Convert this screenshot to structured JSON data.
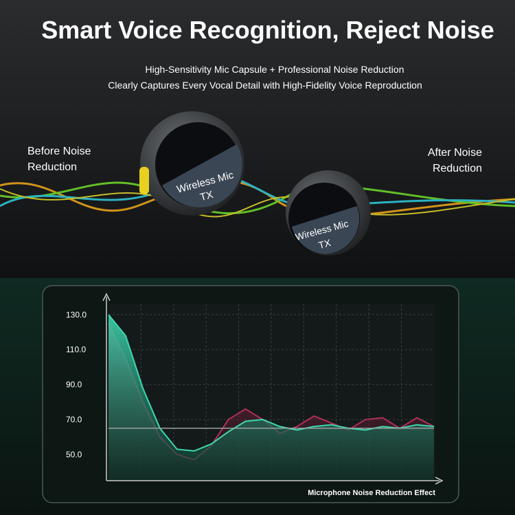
{
  "header": {
    "title": "Smart Voice Recognition, Reject Noise",
    "subtitle_lines": [
      "High-Sensitivity Mic Capsule + Professional Noise Reduction",
      "Clearly Captures Every Vocal Detail with High-Fidelity Voice Reproduction"
    ]
  },
  "labels": {
    "before": [
      "Before Noise",
      "Reduction"
    ],
    "after": [
      "After Noise",
      "Reduction"
    ]
  },
  "device": {
    "label": "Wireless Mic",
    "model": "TX"
  },
  "chart_data": {
    "type": "area",
    "x_label": "Microphone Noise Reduction Effect",
    "series": [
      {
        "color": "#b0305a",
        "values": [
          125,
          105,
          80,
          60,
          50,
          47,
          55,
          70,
          76,
          70,
          62,
          66,
          72,
          68,
          64,
          70,
          71,
          65,
          71,
          66
        ]
      },
      {
        "color": "#3fd6b0",
        "values": [
          130,
          118,
          88,
          65,
          53,
          52,
          56,
          63,
          69,
          70,
          66,
          64,
          66,
          67,
          65,
          64,
          66,
          65,
          67,
          66
        ]
      }
    ],
    "reference_line": 65,
    "ylim": [
      35,
      136
    ],
    "yticks": [
      {
        "value": 50,
        "label": "50.0"
      },
      {
        "value": 70,
        "label": "70.0"
      },
      {
        "value": 90,
        "label": "90.0"
      },
      {
        "value": 110,
        "label": "110.0"
      },
      {
        "value": 130,
        "label": "130.0"
      }
    ],
    "grid": true
  }
}
